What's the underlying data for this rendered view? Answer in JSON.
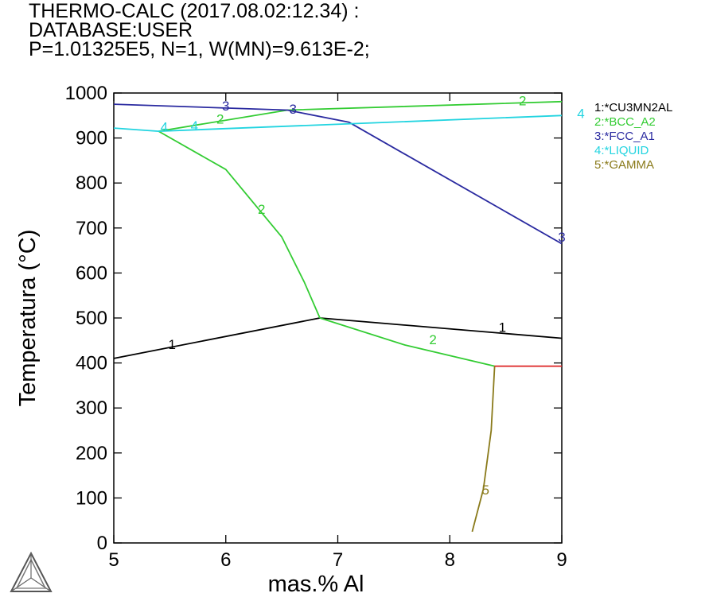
{
  "header": {
    "line1": "THERMO-CALC (2017.08.02:12.34) :",
    "line2": "DATABASE:USER",
    "line3": "P=1.01325E5, N=1, W(MN)=9.613E-2;"
  },
  "colors": {
    "axis": "#000000",
    "phase1": "#000000",
    "phase2": "#33cc33",
    "phase3": "#2a2aa0",
    "phase4": "#22d4e0",
    "phase5": "#8a7a1a",
    "extra_red": "#dd2222"
  },
  "logo": {
    "icon": "thermo-calc-triangle-logo"
  },
  "chart_data": {
    "type": "line",
    "xlabel": "mas.% Al",
    "ylabel": "Temperatura (°C)",
    "xlim": [
      5,
      9
    ],
    "ylim": [
      0,
      1000
    ],
    "xticks": [
      "5",
      "6",
      "7",
      "8",
      "9"
    ],
    "yticks": [
      "0",
      "100",
      "200",
      "300",
      "400",
      "500",
      "600",
      "700",
      "800",
      "900",
      "1000"
    ],
    "grid": false,
    "legend_position": "right",
    "legend": [
      {
        "label": "1:*CU3MN2AL",
        "color": "#000000"
      },
      {
        "label": "2:*BCC_A2",
        "color": "#33cc33"
      },
      {
        "label": "3:*FCC_A1",
        "color": "#2a2aa0"
      },
      {
        "label": "4:*LIQUID",
        "color": "#22d4e0"
      },
      {
        "label": "5:*GAMMA",
        "color": "#8a7a1a"
      }
    ],
    "series": [
      {
        "name": "1:*CU3MN2AL",
        "color": "#000000",
        "points": [
          [
            5.0,
            410
          ],
          [
            6.84,
            500
          ]
        ]
      },
      {
        "name": "1:*CU3MN2AL",
        "color": "#000000",
        "points": [
          [
            6.84,
            500
          ],
          [
            9.0,
            455
          ]
        ]
      },
      {
        "name": "2:*BCC_A2",
        "color": "#33cc33",
        "points": [
          [
            5.4,
            915
          ],
          [
            6.0,
            830
          ],
          [
            6.5,
            680
          ],
          [
            6.7,
            580
          ],
          [
            6.84,
            500
          ]
        ]
      },
      {
        "name": "2:*BCC_A2",
        "color": "#33cc33",
        "points": [
          [
            6.84,
            500
          ],
          [
            7.6,
            440
          ],
          [
            8.4,
            393
          ]
        ]
      },
      {
        "name": "2:*BCC_A2",
        "color": "#33cc33",
        "points": [
          [
            5.4,
            915
          ],
          [
            6.55,
            962
          ],
          [
            9.0,
            981
          ]
        ]
      },
      {
        "name": "3:*FCC_A1",
        "color": "#2a2aa0",
        "points": [
          [
            5.0,
            975
          ],
          [
            6.55,
            962
          ],
          [
            7.1,
            935
          ],
          [
            9.0,
            665
          ]
        ]
      },
      {
        "name": "4:*LIQUID",
        "color": "#22d4e0",
        "points": [
          [
            5.0,
            922
          ],
          [
            5.4,
            915
          ],
          [
            9.0,
            950
          ]
        ]
      },
      {
        "name": "5:*GAMMA",
        "color": "#8a7a1a",
        "points": [
          [
            8.2,
            25
          ],
          [
            8.3,
            120
          ],
          [
            8.37,
            250
          ],
          [
            8.4,
            393
          ]
        ]
      },
      {
        "name": "",
        "color": "#dd2222",
        "points": [
          [
            8.4,
            393
          ],
          [
            9.0,
            393
          ]
        ]
      }
    ],
    "annotations": [
      {
        "text": "1",
        "x": 5.52,
        "y": 442,
        "color": "#000000"
      },
      {
        "text": "1",
        "x": 8.47,
        "y": 480,
        "color": "#000000"
      },
      {
        "text": "2",
        "x": 5.95,
        "y": 943,
        "color": "#33cc33"
      },
      {
        "text": "2",
        "x": 8.65,
        "y": 983,
        "color": "#33cc33"
      },
      {
        "text": "2",
        "x": 6.32,
        "y": 742,
        "color": "#33cc33"
      },
      {
        "text": "2",
        "x": 7.85,
        "y": 452,
        "color": "#33cc33"
      },
      {
        "text": "3",
        "x": 6.0,
        "y": 972,
        "color": "#2a2aa0"
      },
      {
        "text": "3",
        "x": 6.6,
        "y": 965,
        "color": "#2a2aa0"
      },
      {
        "text": "3",
        "x": 9.0,
        "y": 680,
        "color": "#2a2aa0"
      },
      {
        "text": "4",
        "x": 5.45,
        "y": 925,
        "color": "#22d4e0"
      },
      {
        "text": "4",
        "x": 5.72,
        "y": 928,
        "color": "#22d4e0"
      },
      {
        "text": "4",
        "x": 9.17,
        "y": 955,
        "color": "#22d4e0"
      },
      {
        "text": "5",
        "x": 8.32,
        "y": 118,
        "color": "#8a7a1a"
      }
    ]
  }
}
